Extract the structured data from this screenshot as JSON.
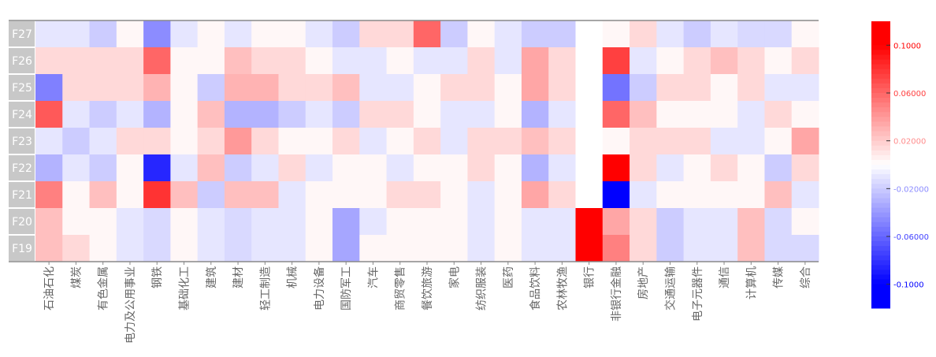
{
  "chart_data": {
    "type": "heatmap",
    "title": "",
    "xlabel": "",
    "ylabel": "",
    "rows": [
      "F27",
      "F26",
      "F25",
      "F24",
      "F23",
      "F22",
      "F21",
      "F20",
      "F19"
    ],
    "columns": [
      "石油石化",
      "煤炭",
      "有色金属",
      "电力及公用事业",
      "钢铁",
      "基础化工",
      "建筑",
      "建材",
      "轻工制造",
      "机械",
      "电力设备",
      "国防军工",
      "汽车",
      "商贸零售",
      "餐饮旅游",
      "家电",
      "纺织服装",
      "医药",
      "食品饮料",
      "农林牧渔",
      "银行",
      "非银行金融",
      "房地产",
      "交通运输",
      "电子元器件",
      "通信",
      "计算机",
      "传媒",
      "综合"
    ],
    "values": [
      [
        -0.01,
        -0.01,
        -0.02,
        0.003,
        -0.045,
        -0.01,
        0.003,
        -0.01,
        0.003,
        0.003,
        -0.01,
        -0.02,
        0.015,
        0.015,
        0.06,
        -0.02,
        0.003,
        -0.01,
        -0.02,
        -0.02,
        null,
        0.003,
        0.015,
        -0.01,
        -0.02,
        -0.01,
        -0.015,
        -0.015,
        0.003
      ],
      [
        0.015,
        0.015,
        0.015,
        0.015,
        0.06,
        0.003,
        0.003,
        0.025,
        0.015,
        0.015,
        0.003,
        -0.01,
        -0.01,
        0.003,
        -0.01,
        -0.01,
        0.015,
        -0.01,
        0.035,
        0.015,
        null,
        0.075,
        -0.01,
        0.003,
        0.015,
        0.025,
        0.015,
        0.003,
        0.015
      ],
      [
        -0.05,
        0.015,
        0.015,
        0.015,
        0.03,
        0.003,
        -0.02,
        0.03,
        0.03,
        0.015,
        0.015,
        0.025,
        -0.01,
        -0.01,
        0.003,
        0.015,
        0.015,
        0.003,
        0.035,
        0.015,
        null,
        -0.055,
        -0.02,
        0.015,
        0.015,
        0.003,
        0.015,
        -0.01,
        -0.01
      ],
      [
        0.065,
        -0.01,
        -0.02,
        -0.01,
        -0.03,
        0.003,
        0.025,
        -0.03,
        -0.03,
        -0.02,
        -0.01,
        -0.02,
        0.015,
        0.015,
        0.003,
        -0.01,
        -0.01,
        0.003,
        -0.03,
        -0.01,
        null,
        0.06,
        0.025,
        0.003,
        0.003,
        0.003,
        -0.01,
        0.015,
        0.003
      ],
      [
        -0.01,
        -0.02,
        -0.01,
        0.015,
        0.015,
        0.003,
        0.015,
        0.04,
        0.015,
        0.003,
        0.003,
        0.015,
        -0.01,
        0.003,
        0.015,
        -0.01,
        0.015,
        0.015,
        0.025,
        0.015,
        null,
        0.003,
        0.015,
        0.015,
        0.015,
        -0.01,
        -0.01,
        0.003,
        0.035
      ],
      [
        -0.03,
        -0.01,
        -0.02,
        0.003,
        -0.085,
        -0.01,
        0.025,
        -0.02,
        -0.01,
        0.015,
        -0.01,
        0.003,
        0.003,
        -0.01,
        0.003,
        0.003,
        0.015,
        0.003,
        -0.03,
        -0.01,
        null,
        0.1,
        0.015,
        -0.01,
        0.003,
        0.015,
        0.003,
        -0.02,
        0.015
      ],
      [
        0.05,
        0.003,
        0.025,
        0.003,
        0.08,
        0.025,
        -0.02,
        0.025,
        0.025,
        -0.01,
        0.003,
        0.003,
        0.003,
        0.015,
        0.015,
        0.003,
        -0.01,
        0.003,
        0.035,
        0.015,
        null,
        -0.1,
        -0.01,
        0.003,
        0.003,
        0.003,
        0.003,
        0.025,
        -0.01
      ],
      [
        0.025,
        0.003,
        0.003,
        -0.01,
        -0.015,
        0.003,
        -0.01,
        -0.015,
        -0.01,
        -0.01,
        0.003,
        -0.035,
        -0.01,
        0.003,
        0.003,
        0.003,
        -0.01,
        0.003,
        -0.01,
        -0.01,
        0.1,
        0.035,
        0.015,
        -0.02,
        -0.01,
        -0.01,
        0.025,
        -0.015,
        0.003
      ],
      [
        0.025,
        0.015,
        0.003,
        -0.01,
        -0.015,
        0.003,
        -0.01,
        -0.015,
        -0.01,
        -0.01,
        0.003,
        -0.035,
        0.003,
        0.003,
        0.003,
        0.003,
        -0.01,
        0.003,
        -0.01,
        -0.01,
        0.1,
        0.05,
        0.015,
        -0.02,
        -0.01,
        -0.01,
        0.025,
        -0.015,
        -0.015
      ]
    ],
    "colorbar": {
      "min": -0.12,
      "max": 0.12,
      "ticks": [
        {
          "value": 0.1,
          "label": "0.1000"
        },
        {
          "value": 0.06,
          "label": "0.06000"
        },
        {
          "value": 0.02,
          "label": "0.02000"
        },
        {
          "value": -0.02,
          "label": "-0.02000"
        },
        {
          "value": -0.06,
          "label": "-0.06000"
        },
        {
          "value": -0.1,
          "label": "-0.1000"
        }
      ],
      "positive_color": "#ff0000",
      "negative_color": "#0000ff",
      "neutral_color": "#ffffff"
    },
    "grid": false,
    "legend": "right"
  }
}
